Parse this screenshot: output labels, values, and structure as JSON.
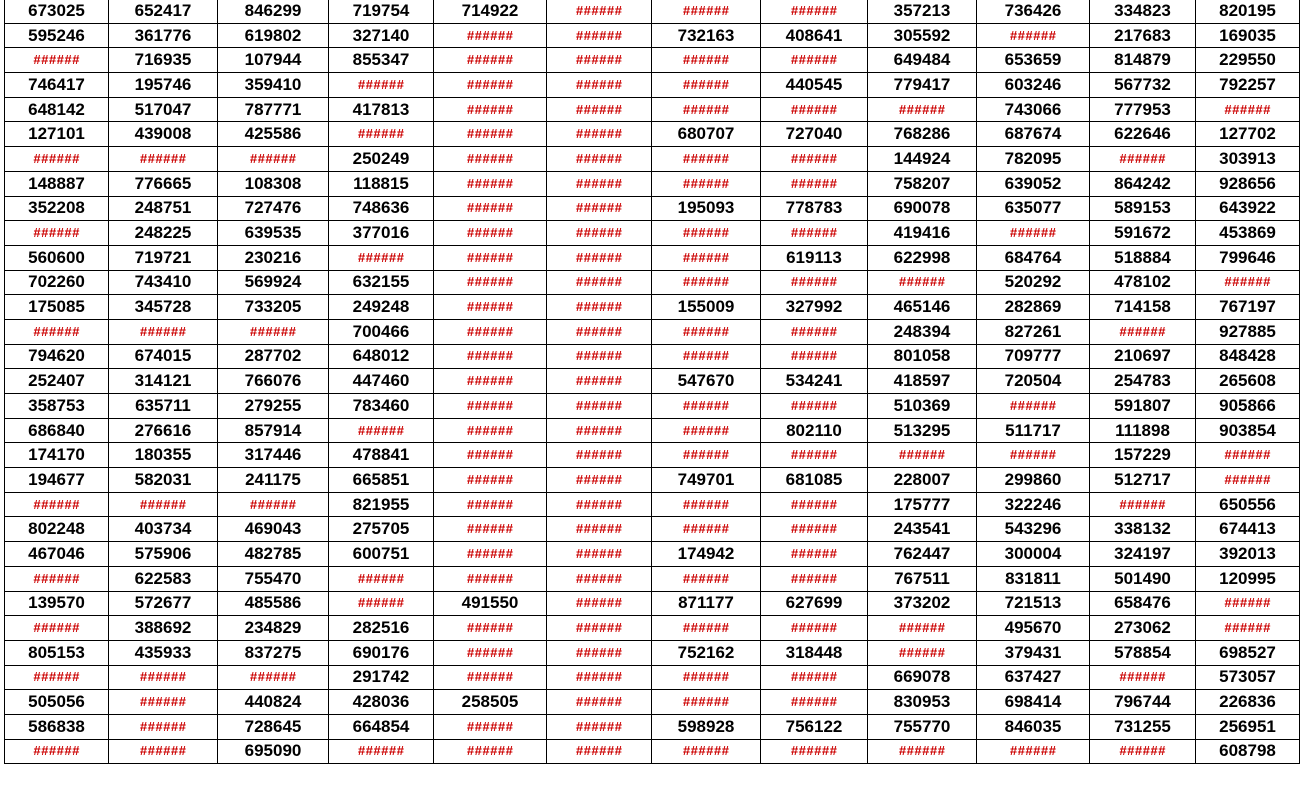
{
  "rows": [
    [
      "673025",
      "652417",
      "846299",
      "719754",
      "714922",
      "######",
      "######",
      "######",
      "357213",
      "736426",
      "334823",
      "820195"
    ],
    [
      "595246",
      "361776",
      "619802",
      "327140",
      "######",
      "######",
      "732163",
      "408641",
      "305592",
      "######",
      "217683",
      "169035"
    ],
    [
      "######",
      "716935",
      "107944",
      "855347",
      "######",
      "######",
      "######",
      "######",
      "649484",
      "653659",
      "814879",
      "229550"
    ],
    [
      "746417",
      "195746",
      "359410",
      "######",
      "######",
      "######",
      "######",
      "440545",
      "779417",
      "603246",
      "567732",
      "792257"
    ],
    [
      "648142",
      "517047",
      "787771",
      "417813",
      "######",
      "######",
      "######",
      "######",
      "######",
      "743066",
      "777953",
      "######"
    ],
    [
      "127101",
      "439008",
      "425586",
      "######",
      "######",
      "######",
      "680707",
      "727040",
      "768286",
      "687674",
      "622646",
      "127702"
    ],
    [
      "######",
      "######",
      "######",
      "250249",
      "######",
      "######",
      "######",
      "######",
      "144924",
      "782095",
      "######",
      "303913"
    ],
    [
      "148887",
      "776665",
      "108308",
      "118815",
      "######",
      "######",
      "######",
      "######",
      "758207",
      "639052",
      "864242",
      "928656"
    ],
    [
      "352208",
      "248751",
      "727476",
      "748636",
      "######",
      "######",
      "195093",
      "778783",
      "690078",
      "635077",
      "589153",
      "643922"
    ],
    [
      "######",
      "248225",
      "639535",
      "377016",
      "######",
      "######",
      "######",
      "######",
      "419416",
      "######",
      "591672",
      "453869"
    ],
    [
      "560600",
      "719721",
      "230216",
      "######",
      "######",
      "######",
      "######",
      "619113",
      "622998",
      "684764",
      "518884",
      "799646"
    ],
    [
      "702260",
      "743410",
      "569924",
      "632155",
      "######",
      "######",
      "######",
      "######",
      "######",
      "520292",
      "478102",
      "######"
    ],
    [
      "175085",
      "345728",
      "733205",
      "249248",
      "######",
      "######",
      "155009",
      "327992",
      "465146",
      "282869",
      "714158",
      "767197"
    ],
    [
      "######",
      "######",
      "######",
      "700466",
      "######",
      "######",
      "######",
      "######",
      "248394",
      "827261",
      "######",
      "927885"
    ],
    [
      "794620",
      "674015",
      "287702",
      "648012",
      "######",
      "######",
      "######",
      "######",
      "801058",
      "709777",
      "210697",
      "848428"
    ],
    [
      "252407",
      "314121",
      "766076",
      "447460",
      "######",
      "######",
      "547670",
      "534241",
      "418597",
      "720504",
      "254783",
      "265608"
    ],
    [
      "358753",
      "635711",
      "279255",
      "783460",
      "######",
      "######",
      "######",
      "######",
      "510369",
      "######",
      "591807",
      "905866"
    ],
    [
      "686840",
      "276616",
      "857914",
      "######",
      "######",
      "######",
      "######",
      "802110",
      "513295",
      "511717",
      "111898",
      "903854"
    ],
    [
      "174170",
      "180355",
      "317446",
      "478841",
      "######",
      "######",
      "######",
      "######",
      "######",
      "######",
      "157229",
      "######"
    ],
    [
      "194677",
      "582031",
      "241175",
      "665851",
      "######",
      "######",
      "749701",
      "681085",
      "228007",
      "299860",
      "512717",
      "######"
    ],
    [
      "######",
      "######",
      "######",
      "821955",
      "######",
      "######",
      "######",
      "######",
      "175777",
      "322246",
      "######",
      "650556"
    ],
    [
      "802248",
      "403734",
      "469043",
      "275705",
      "######",
      "######",
      "######",
      "######",
      "243541",
      "543296",
      "338132",
      "674413"
    ],
    [
      "467046",
      "575906",
      "482785",
      "600751",
      "######",
      "######",
      "174942",
      "######",
      "762447",
      "300004",
      "324197",
      "392013"
    ],
    [
      "######",
      "622583",
      "755470",
      "######",
      "######",
      "######",
      "######",
      "######",
      "767511",
      "831811",
      "501490",
      "120995"
    ],
    [
      "139570",
      "572677",
      "485586",
      "######",
      "491550",
      "######",
      "871177",
      "627699",
      "373202",
      "721513",
      "658476",
      "######"
    ],
    [
      "######",
      "388692",
      "234829",
      "282516",
      "######",
      "######",
      "######",
      "######",
      "######",
      "495670",
      "273062",
      "######"
    ],
    [
      "805153",
      "435933",
      "837275",
      "690176",
      "######",
      "######",
      "752162",
      "318448",
      "######",
      "379431",
      "578854",
      "698527"
    ],
    [
      "######",
      "######",
      "######",
      "291742",
      "######",
      "######",
      "######",
      "######",
      "669078",
      "637427",
      "######",
      "573057"
    ],
    [
      "505056",
      "######",
      "440824",
      "428036",
      "258505",
      "######",
      "######",
      "######",
      "830953",
      "698414",
      "796744",
      "226836"
    ],
    [
      "586838",
      "######",
      "728645",
      "664854",
      "######",
      "######",
      "598928",
      "756122",
      "755770",
      "846035",
      "731255",
      "256951"
    ],
    [
      "######",
      "######",
      "695090",
      "######",
      "######",
      "######",
      "######",
      "######",
      "######",
      "######",
      "######",
      "608798"
    ]
  ],
  "colors": {
    "text": "#000000",
    "error_text": "#cc0000",
    "grid": "#000000",
    "background": "#ffffff"
  }
}
